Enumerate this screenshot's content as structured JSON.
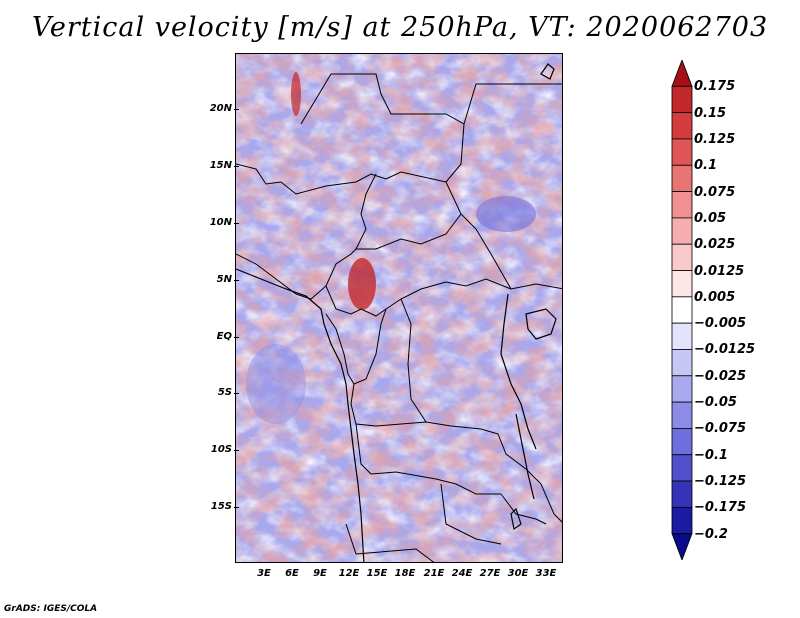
{
  "title": "Vertical velocity [m/s] at 250hPa, VT: 2020062703",
  "credit": "GrADS: IGES/COLA",
  "map": {
    "lon_labels": [
      "3E",
      "6E",
      "9E",
      "12E",
      "15E",
      "18E",
      "21E",
      "24E",
      "27E",
      "30E",
      "33E"
    ],
    "lat_labels": [
      "20N",
      "15N",
      "10N",
      "5N",
      "EQ",
      "5S",
      "10S",
      "15S"
    ]
  },
  "colorbar": {
    "labels": [
      "0.175",
      "0.15",
      "0.125",
      "0.1",
      "0.075",
      "0.05",
      "0.025",
      "0.0125",
      "0.005",
      "−0.005",
      "−0.0125",
      "−0.025",
      "−0.05",
      "−0.075",
      "−0.1",
      "−0.125",
      "−0.175",
      "−0.2"
    ],
    "colors": [
      "#a50f15",
      "#c0282c",
      "#d43d3d",
      "#e05656",
      "#e97474",
      "#f09090",
      "#f5adad",
      "#f9caca",
      "#fde6e6",
      "#ffffff",
      "#e3e3fb",
      "#c7c7f6",
      "#a9a9ef",
      "#8c8ce6",
      "#6e6edc",
      "#5050cc",
      "#3434b8",
      "#1c1ca2",
      "#0a0a8a"
    ]
  }
}
